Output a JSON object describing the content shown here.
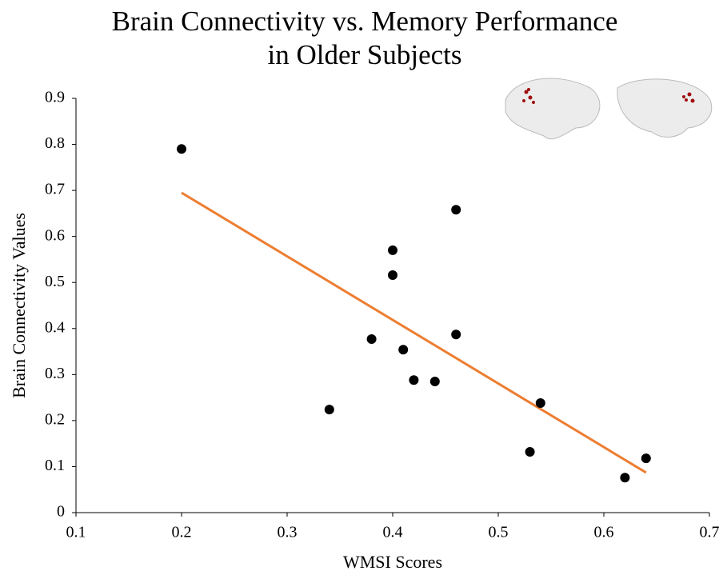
{
  "chart_data": {
    "type": "scatter",
    "title": [
      "Brain Connectivity vs. Memory Performance",
      "in Older Subjects"
    ],
    "x_label": "WMSI Scores",
    "y_label": "Brain Connectivity Values",
    "x": [
      0.2,
      0.34,
      0.38,
      0.4,
      0.4,
      0.41,
      0.42,
      0.44,
      0.46,
      0.46,
      0.53,
      0.54,
      0.62,
      0.64
    ],
    "y": [
      0.79,
      0.224,
      0.377,
      0.57,
      0.516,
      0.354,
      0.288,
      0.285,
      0.658,
      0.387,
      0.132,
      0.238,
      0.076,
      0.118
    ],
    "color": "#000000",
    "trendline": {
      "x": [
        0.2,
        0.64
      ],
      "y": [
        0.695,
        0.087
      ],
      "color": "#ed7d31"
    },
    "xlim": [
      0.1,
      0.7
    ],
    "xticks": [
      0.1,
      0.2,
      0.3,
      0.4,
      0.5,
      0.6,
      0.7
    ],
    "ylim": [
      0,
      0.9
    ],
    "yticks": [
      0,
      0.1,
      0.2,
      0.3,
      0.4,
      0.5,
      0.6,
      0.7,
      0.8,
      0.9
    ],
    "grid": false
  }
}
